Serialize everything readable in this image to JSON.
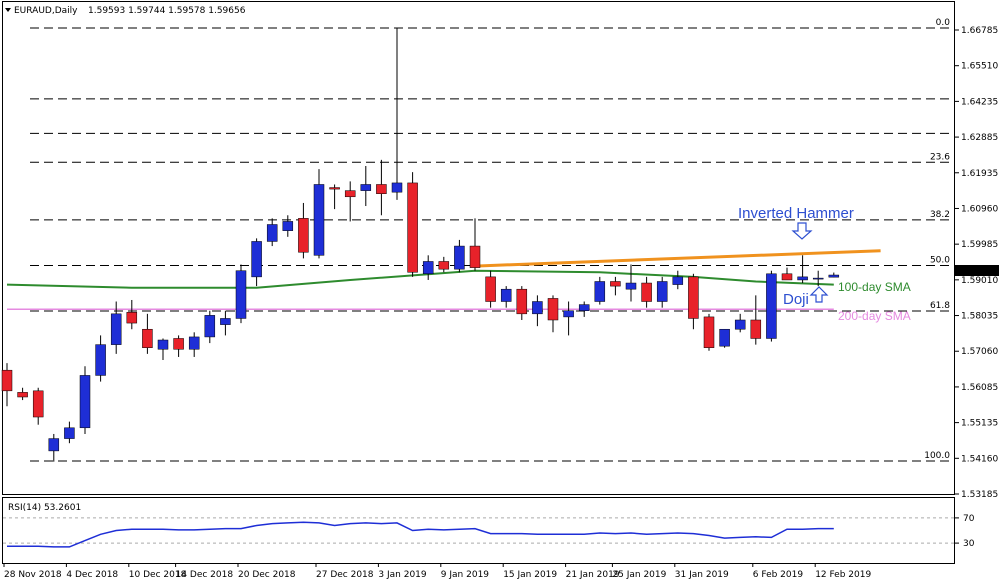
{
  "header": {
    "symbol": "EURAUD,Daily",
    "ohlc": "1.59593 1.59744 1.59578 1.59656"
  },
  "rsi_panel": {
    "label": "RSI(14) 53.2601"
  },
  "annotations": {
    "inverted_hammer": "Inverted Hammer",
    "doji": "Doji",
    "sma100": "100-day SMA",
    "sma200": "200-day SMA"
  },
  "colors": {
    "bull": "#1e2ed6",
    "bear": "#e8222a",
    "sma100": "#2e8b2e",
    "sma200": "#e58ae0",
    "trend": "#f0921e",
    "rsi": "#1e2ed6",
    "fib": "#000000",
    "annotation_blue": "#2d4fd0"
  },
  "chart_data": [
    {
      "type": "candlestick",
      "title": "EURAUD,Daily",
      "x_tick_labels": [
        "28 Nov 2018",
        "4 Dec 2018",
        "10 Dec 2018",
        "14 Dec 2018",
        "20 Dec 2018",
        "27 Dec 2018",
        "3 Jan 2019",
        "9 Jan 2019",
        "15 Jan 2019",
        "21 Jan 2019",
        "25 Jan 2019",
        "31 Jan 2019",
        "6 Feb 2019",
        "12 Feb 2019"
      ],
      "y_tick_labels": [
        "1.66785",
        "1.65510",
        "1.64235",
        "1.62885",
        "1.61935",
        "1.60960",
        "1.59985",
        "1.59010",
        "1.58035",
        "1.57060",
        "1.56085",
        "1.55135",
        "1.54160",
        "1.53185"
      ],
      "ylim": [
        1.5307,
        1.6768
      ],
      "current_price": "1.59656",
      "fibonacci": [
        {
          "label": "0.0",
          "value": 1.6768
        },
        {
          "label": "",
          "value": 1.6538
        },
        {
          "label": "",
          "value": 1.6426
        },
        {
          "label": "23.6",
          "value": 1.6332
        },
        {
          "label": "38.2",
          "value": 1.6145
        },
        {
          "label": "50.0",
          "value": 1.5997
        },
        {
          "label": "61.8",
          "value": 1.5849
        },
        {
          "label": "100.0",
          "value": 1.5362
        }
      ],
      "candles": [
        {
          "o": 1.5657,
          "h": 1.568,
          "l": 1.554,
          "c": 1.559
        },
        {
          "o": 1.5585,
          "h": 1.56,
          "l": 1.556,
          "c": 1.557
        },
        {
          "o": 1.559,
          "h": 1.56,
          "l": 1.548,
          "c": 1.5505
        },
        {
          "o": 1.5395,
          "h": 1.545,
          "l": 1.536,
          "c": 1.5435
        },
        {
          "o": 1.5435,
          "h": 1.549,
          "l": 1.542,
          "c": 1.547
        },
        {
          "o": 1.547,
          "h": 1.567,
          "l": 1.545,
          "c": 1.564
        },
        {
          "o": 1.564,
          "h": 1.577,
          "l": 1.562,
          "c": 1.574
        },
        {
          "o": 1.574,
          "h": 1.588,
          "l": 1.571,
          "c": 1.584
        },
        {
          "o": 1.5845,
          "h": 1.5885,
          "l": 1.579,
          "c": 1.581
        },
        {
          "o": 1.579,
          "h": 1.584,
          "l": 1.571,
          "c": 1.573
        },
        {
          "o": 1.5725,
          "h": 1.576,
          "l": 1.569,
          "c": 1.5755
        },
        {
          "o": 1.576,
          "h": 1.577,
          "l": 1.57,
          "c": 1.5725
        },
        {
          "o": 1.5725,
          "h": 1.578,
          "l": 1.57,
          "c": 1.5765
        },
        {
          "o": 1.5765,
          "h": 1.585,
          "l": 1.5745,
          "c": 1.5835
        },
        {
          "o": 1.5805,
          "h": 1.585,
          "l": 1.577,
          "c": 1.5825
        },
        {
          "o": 1.5825,
          "h": 1.6,
          "l": 1.581,
          "c": 1.598
        },
        {
          "o": 1.596,
          "h": 1.6085,
          "l": 1.593,
          "c": 1.6075
        },
        {
          "o": 1.6075,
          "h": 1.615,
          "l": 1.606,
          "c": 1.613
        },
        {
          "o": 1.611,
          "h": 1.616,
          "l": 1.609,
          "c": 1.614
        },
        {
          "o": 1.615,
          "h": 1.62,
          "l": 1.602,
          "c": 1.604
        },
        {
          "o": 1.603,
          "h": 1.631,
          "l": 1.602,
          "c": 1.626
        },
        {
          "o": 1.625,
          "h": 1.626,
          "l": 1.618,
          "c": 1.6245
        },
        {
          "o": 1.624,
          "h": 1.627,
          "l": 1.614,
          "c": 1.622
        },
        {
          "o": 1.624,
          "h": 1.632,
          "l": 1.619,
          "c": 1.626
        },
        {
          "o": 1.626,
          "h": 1.634,
          "l": 1.616,
          "c": 1.623
        },
        {
          "o": 1.6235,
          "h": 1.6768,
          "l": 1.621,
          "c": 1.6265
        },
        {
          "o": 1.6265,
          "h": 1.63,
          "l": 1.596,
          "c": 1.5975
        },
        {
          "o": 1.597,
          "h": 1.603,
          "l": 1.595,
          "c": 1.601
        },
        {
          "o": 1.601,
          "h": 1.6025,
          "l": 1.5975,
          "c": 1.5985
        },
        {
          "o": 1.5985,
          "h": 1.608,
          "l": 1.5975,
          "c": 1.606
        },
        {
          "o": 1.606,
          "h": 1.615,
          "l": 1.598,
          "c": 1.599
        },
        {
          "o": 1.596,
          "h": 1.598,
          "l": 1.586,
          "c": 1.588
        },
        {
          "o": 1.588,
          "h": 1.593,
          "l": 1.586,
          "c": 1.592
        },
        {
          "o": 1.592,
          "h": 1.593,
          "l": 1.582,
          "c": 1.584
        },
        {
          "o": 1.584,
          "h": 1.59,
          "l": 1.58,
          "c": 1.588
        },
        {
          "o": 1.589,
          "h": 1.59,
          "l": 1.578,
          "c": 1.582
        },
        {
          "o": 1.583,
          "h": 1.588,
          "l": 1.577,
          "c": 1.585
        },
        {
          "o": 1.585,
          "h": 1.588,
          "l": 1.583,
          "c": 1.587
        },
        {
          "o": 1.588,
          "h": 1.596,
          "l": 1.587,
          "c": 1.5945
        },
        {
          "o": 1.5945,
          "h": 1.596,
          "l": 1.59,
          "c": 1.593
        },
        {
          "o": 1.592,
          "h": 1.6,
          "l": 1.588,
          "c": 1.594
        },
        {
          "o": 1.594,
          "h": 1.596,
          "l": 1.586,
          "c": 1.588
        },
        {
          "o": 1.588,
          "h": 1.596,
          "l": 1.586,
          "c": 1.5945
        },
        {
          "o": 1.5935,
          "h": 1.598,
          "l": 1.592,
          "c": 1.596
        },
        {
          "o": 1.596,
          "h": 1.597,
          "l": 1.579,
          "c": 1.5825
        },
        {
          "o": 1.583,
          "h": 1.584,
          "l": 1.572,
          "c": 1.573
        },
        {
          "o": 1.5735,
          "h": 1.579,
          "l": 1.573,
          "c": 1.579
        },
        {
          "o": 1.579,
          "h": 1.584,
          "l": 1.578,
          "c": 1.582
        },
        {
          "o": 1.582,
          "h": 1.59,
          "l": 1.574,
          "c": 1.576
        },
        {
          "o": 1.576,
          "h": 1.598,
          "l": 1.575,
          "c": 1.597
        },
        {
          "o": 1.597,
          "h": 1.599,
          "l": 1.595,
          "c": 1.595
        },
        {
          "o": 1.595,
          "h": 1.603,
          "l": 1.594,
          "c": 1.596
        },
        {
          "o": 1.5955,
          "h": 1.598,
          "l": 1.593,
          "c": 1.5956
        },
        {
          "o": 1.5959,
          "h": 1.5974,
          "l": 1.5958,
          "c": 1.5966
        }
      ],
      "sma100": [
        [
          0,
          1.5935
        ],
        [
          8,
          1.5925
        ],
        [
          16,
          1.5925
        ],
        [
          22,
          1.595
        ],
        [
          30,
          1.598
        ],
        [
          38,
          1.5975
        ],
        [
          44,
          1.596
        ],
        [
          48,
          1.5945
        ],
        [
          53,
          1.5935
        ]
      ],
      "sma200": [
        [
          0,
          1.5855
        ],
        [
          53,
          1.5855
        ]
      ],
      "trendline": [
        [
          30,
          1.5995
        ],
        [
          56,
          1.6045
        ]
      ]
    },
    {
      "type": "line",
      "title": "RSI(14) 53.2601",
      "y_tick_labels": [
        "70",
        "30"
      ],
      "ylim": [
        0,
        100
      ],
      "levels": [
        70,
        30
      ],
      "values": [
        25,
        25,
        25,
        24,
        24,
        34,
        44,
        50,
        52,
        52,
        52,
        51,
        51,
        52,
        53,
        53,
        58,
        61,
        62,
        63,
        62,
        58,
        61,
        62,
        61,
        62,
        50,
        52,
        51,
        52,
        53,
        45,
        45,
        45,
        44,
        44,
        44,
        44,
        46,
        45,
        46,
        44,
        45,
        46,
        45,
        42,
        38,
        39,
        40,
        39,
        52,
        52,
        53,
        53
      ]
    }
  ]
}
